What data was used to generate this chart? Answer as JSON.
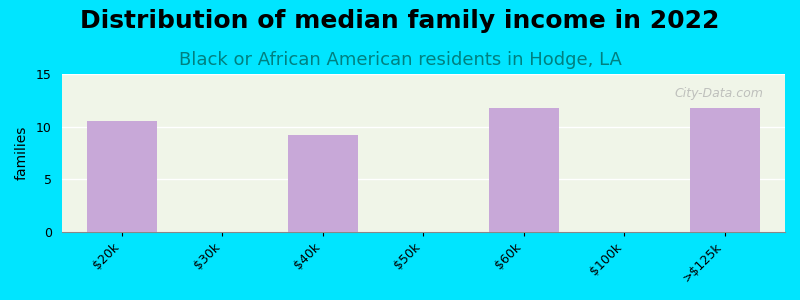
{
  "title": "Distribution of median family income in 2022",
  "subtitle": "Black or African American residents in Hodge, LA",
  "categories": [
    "$20k",
    "$30k",
    "$40k",
    "$50k",
    "$60k",
    "$100k",
    ">$125k"
  ],
  "values": [
    10.5,
    0,
    9.2,
    0,
    11.8,
    0,
    11.8
  ],
  "bar_color": "#c8a8d8",
  "background_outer": "#00e5ff",
  "background_plot_top": "#f0f5e8",
  "background_plot_bottom": "#ffffff",
  "ylabel": "families",
  "ylim": [
    0,
    15
  ],
  "yticks": [
    0,
    5,
    10,
    15
  ],
  "title_fontsize": 18,
  "subtitle_fontsize": 13,
  "subtitle_color": "#008080",
  "bar_width": 0.7,
  "watermark": "City-Data.com"
}
